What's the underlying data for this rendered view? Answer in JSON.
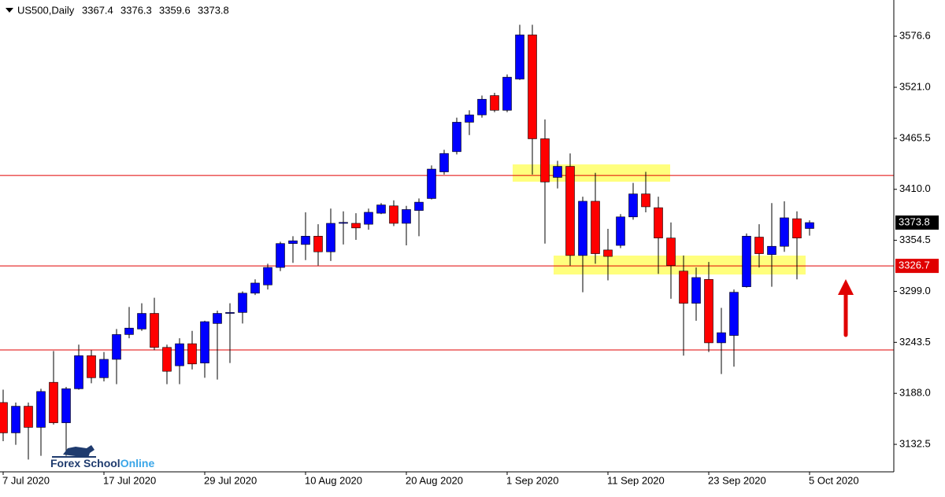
{
  "chart_data": {
    "type": "candlestick",
    "title": "US500,Daily",
    "categories": [
      "7 Jul 2020",
      null,
      null,
      null,
      null,
      null,
      null,
      null,
      "17 Jul 2020",
      null,
      null,
      null,
      null,
      null,
      null,
      null,
      "29 Jul 2020",
      null,
      null,
      null,
      null,
      null,
      null,
      null,
      "10 Aug 2020",
      null,
      null,
      null,
      null,
      null,
      null,
      null,
      "20 Aug 2020",
      null,
      null,
      null,
      null,
      null,
      null,
      null,
      "1 Sep 2020",
      null,
      null,
      null,
      null,
      null,
      null,
      null,
      "11 Sep 2020",
      null,
      null,
      null,
      null,
      null,
      null,
      null,
      "23 Sep 2020",
      null,
      null,
      null,
      null,
      null,
      null,
      null,
      "5 Oct 2020"
    ],
    "open": [
      3178,
      3145,
      3174,
      3151,
      3200,
      3156,
      3193,
      3229,
      3205,
      3225,
      3252,
      3258,
      3275,
      3238,
      3218,
      3242,
      3221,
      3264,
      3275,
      3276,
      3297,
      3306,
      3325,
      3351,
      3350,
      3359,
      3342,
      3373,
      3373,
      3372,
      3384,
      3392,
      3373,
      3387,
      3400,
      3429,
      3451,
      3483,
      3491,
      3512,
      3496,
      3530,
      3578,
      3465,
      3423,
      3435,
      3338,
      3397,
      3344,
      3349,
      3380,
      3405,
      3390,
      3357,
      3321,
      3286,
      3312,
      3243,
      3251,
      3304,
      3358,
      3339,
      3348,
      3378,
      3367.4
    ],
    "high": [
      3192,
      3178,
      3178,
      3193,
      3234,
      3195,
      3241,
      3235,
      3233,
      3258,
      3282,
      3286,
      3292,
      3241,
      3248,
      3256,
      3267,
      3278,
      3286,
      3299,
      3312,
      3329,
      3353,
      3359,
      3385,
      3372,
      3389,
      3386,
      3384,
      3389,
      3395,
      3398,
      3392,
      3400,
      3436,
      3453,
      3488,
      3496,
      3512,
      3515,
      3535,
      3589,
      3589,
      3486,
      3441,
      3449,
      3402,
      3428,
      3367,
      3383,
      3417,
      3429,
      3402,
      3374,
      3338,
      3325,
      3331,
      3281,
      3301,
      3362,
      3372,
      3395,
      3397,
      3386,
      3376.3
    ],
    "low": [
      3136,
      3132,
      3116,
      3120,
      3154,
      3120,
      3192,
      3199,
      3201,
      3198,
      3248,
      3256,
      3235,
      3198,
      3198,
      3214,
      3205,
      3203,
      3221,
      3264,
      3295,
      3301,
      3321,
      3330,
      3333,
      3327,
      3332,
      3350,
      3355,
      3366,
      3383,
      3370,
      3349,
      3359,
      3399,
      3426,
      3448,
      3469,
      3488,
      3494,
      3494,
      3529,
      3426,
      3351,
      3411,
      3327,
      3298,
      3329,
      3311,
      3346,
      3377,
      3385,
      3318,
      3291,
      3229,
      3267,
      3233,
      3209,
      3217,
      3303,
      3325,
      3304,
      3342,
      3312,
      3359.6
    ],
    "close": [
      3145,
      3174,
      3151,
      3190,
      3156,
      3193,
      3229,
      3205,
      3225,
      3252,
      3259,
      3275,
      3238,
      3212,
      3242,
      3220,
      3266,
      3275,
      3276,
      3297,
      3308,
      3325,
      3351,
      3354,
      3359,
      3342,
      3373,
      3374,
      3368,
      3385,
      3393,
      3373,
      3388,
      3396,
      3432,
      3449,
      3483,
      3491,
      3508,
      3496,
      3532,
      3578,
      3465,
      3418,
      3435,
      3338,
      3397,
      3340,
      3337,
      3380,
      3405,
      3391,
      3357,
      3327,
      3286,
      3314,
      3243,
      3254,
      3298,
      3359,
      3340,
      3348,
      3379,
      3357,
      3373.8
    ],
    "up_color": "#0000ff",
    "down_color": "#ff0000",
    "ylim": [
      3102.6,
      3616.0
    ],
    "yticks": [
      3576.6,
      {
        "value": 3521,
        "label": "3521.0"
      },
      3465.5,
      {
        "value": 3410,
        "label": "3410.0"
      },
      3354.5,
      {
        "value": 3299,
        "label": "3299.0"
      },
      3243.5,
      {
        "value": 3188,
        "label": "3188.0"
      },
      3132.5
    ],
    "levels": [
      3425.1,
      3326.7,
      3235.2
    ],
    "level_color": "#e00000",
    "zones": [
      [
        3418.3,
        3437.1
      ],
      [
        3317.3,
        3337.9
      ]
    ],
    "zone_color": "#ffff66",
    "watermark": [
      "Forex School",
      "Online"
    ]
  }
}
